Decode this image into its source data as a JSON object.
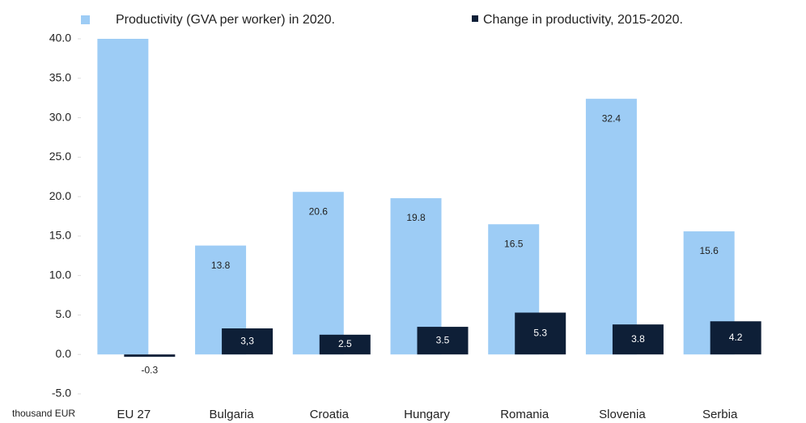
{
  "chart_data": {
    "type": "bar",
    "y_unit_label": "thousand EUR",
    "categories": [
      "EU 27",
      "Bulgaria",
      "Croatia",
      "Hungary",
      "Romania",
      "Slovenia",
      "Serbia"
    ],
    "series": [
      {
        "name": "Productivity (GVA per worker) in 2020.",
        "color": "#9dccf5",
        "values": [
          40,
          13.8,
          20.6,
          19.8,
          16.5,
          32.4,
          15.6
        ],
        "value_labels": [
          null,
          "13.8",
          "20.6",
          "19.8",
          "16.5",
          "32.4",
          "15.6"
        ]
      },
      {
        "name": "Change in productivity, 2015-2020.",
        "color": "#0e1f37",
        "values": [
          -0.3,
          3.3,
          2.5,
          3.5,
          5.3,
          3.8,
          4.2
        ],
        "value_labels": [
          "-0.3",
          "3,3",
          "2.5",
          "3.5",
          "5.3",
          "3.8",
          "4.2"
        ]
      }
    ],
    "ylim": [
      -5,
      40
    ],
    "yticks": [
      {
        "value": -5,
        "label": "-5.0"
      },
      {
        "value": 0,
        "label": "0.0"
      },
      {
        "value": 5,
        "label": "5.0"
      },
      {
        "value": 10,
        "label": "10.0"
      },
      {
        "value": 15,
        "label": "15.0"
      },
      {
        "value": 20,
        "label": "20.0"
      },
      {
        "value": 25,
        "label": "25.0"
      },
      {
        "value": 30,
        "label": "30.0"
      },
      {
        "value": 35,
        "label": "35.0"
      },
      {
        "value": 40,
        "label": "40.0"
      }
    ],
    "grid": false,
    "legend": "top"
  }
}
